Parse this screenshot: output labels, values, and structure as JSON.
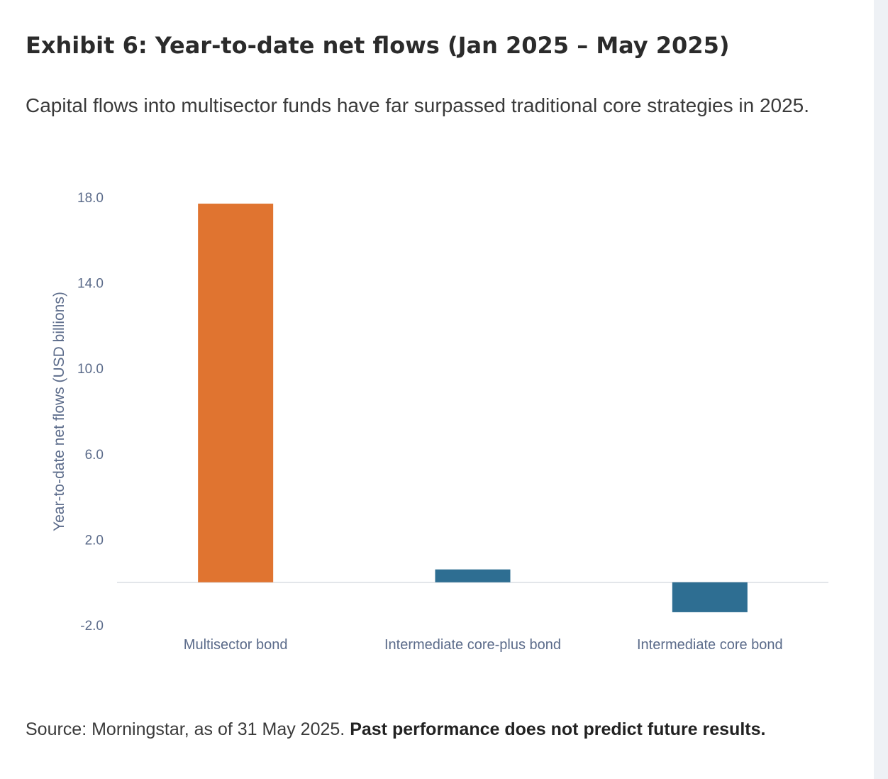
{
  "exhibit": {
    "title": "Exhibit 6: Year-to-date net flows (Jan 2025 – May 2025)",
    "subtitle": "Capital flows into multisector funds have far surpassed traditional core strategies in 2025."
  },
  "chart_data": {
    "type": "bar",
    "categories": [
      "Multisector bond",
      "Intermediate core-plus bond",
      "Intermediate core bond"
    ],
    "values": [
      17.7,
      0.6,
      -1.4
    ],
    "colors": [
      "#e07430",
      "#2e6e92",
      "#2e6e92"
    ],
    "title": "",
    "xlabel": "",
    "ylabel": "Year-to-date net flows (USD billions)",
    "ylim": [
      -2.0,
      18.0
    ],
    "yticks": [
      18.0,
      14.0,
      10.0,
      6.0,
      2.0,
      -2.0
    ],
    "ytick_labels": [
      "18.0",
      "14.0",
      "10.0",
      "6.0",
      "2.0",
      "-2.0"
    ],
    "grid": false,
    "legend": "none"
  },
  "footer": {
    "source_text": "Source: Morningstar, as of 31 May 2025. ",
    "disclaimer": "Past performance does not predict future results."
  },
  "colors": {
    "axis_text": "#5b6b8a",
    "zero_line": "#d9dde3"
  }
}
